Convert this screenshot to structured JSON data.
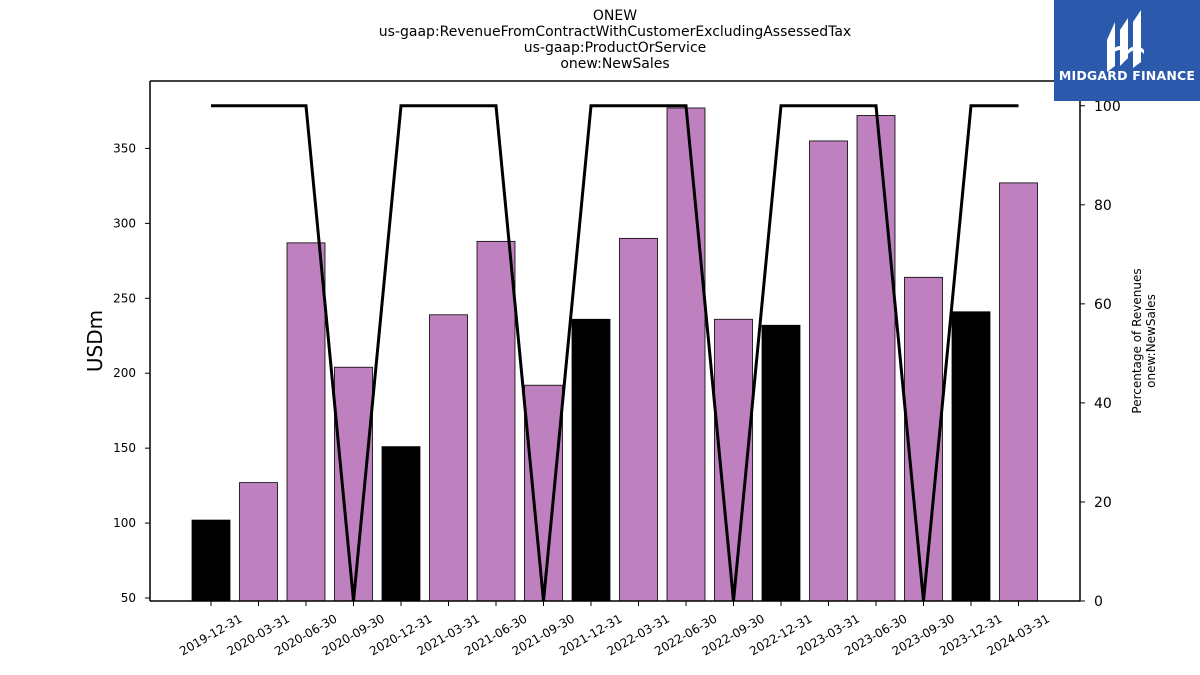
{
  "brand": {
    "logo_text": "MIDGARD FINANCE",
    "logo_bg": "#2b5aad",
    "icon": "midgard-logo-icon"
  },
  "chart_data": {
    "type": "bar",
    "title_lines": [
      "ONEW",
      "us-gaap:RevenueFromContractWithCustomerExcludingAssessedTax",
      "us-gaap:ProductOrService",
      "onew:NewSales"
    ],
    "ylabel": "USDm",
    "y2label_lines": [
      "Percentage of Revenues",
      "onew:NewSales"
    ],
    "categories": [
      "2019-12-31",
      "2020-03-31",
      "2020-06-30",
      "2020-09-30",
      "2020-12-31",
      "2021-03-31",
      "2021-06-30",
      "2021-09-30",
      "2021-12-31",
      "2022-03-31",
      "2022-06-30",
      "2022-09-30",
      "2022-12-31",
      "2023-03-31",
      "2023-06-30",
      "2023-09-30",
      "2023-12-31",
      "2024-03-31"
    ],
    "values": [
      102,
      127,
      287,
      204,
      151,
      239,
      288,
      192,
      236,
      290,
      377,
      236,
      232,
      355,
      372,
      264,
      241,
      327
    ],
    "bar_colors": [
      "#000000",
      "#bf80bf",
      "#bf80bf",
      "#bf80bf",
      "#000000",
      "#bf80bf",
      "#bf80bf",
      "#bf80bf",
      "#000000",
      "#bf80bf",
      "#bf80bf",
      "#bf80bf",
      "#000000",
      "#bf80bf",
      "#bf80bf",
      "#bf80bf",
      "#000000",
      "#bf80bf"
    ],
    "line_values": [
      100,
      100,
      100,
      0,
      100,
      100,
      100,
      0,
      100,
      100,
      100,
      0,
      100,
      100,
      100,
      0,
      100,
      100
    ],
    "line_color": "#000000",
    "ylim": [
      48,
      395
    ],
    "y_ticks": [
      50,
      100,
      150,
      200,
      250,
      300,
      350
    ],
    "y2lim": [
      0,
      105
    ],
    "y2_ticks": [
      0,
      20,
      40,
      60,
      80,
      100
    ],
    "grid": false,
    "legend": "none"
  }
}
